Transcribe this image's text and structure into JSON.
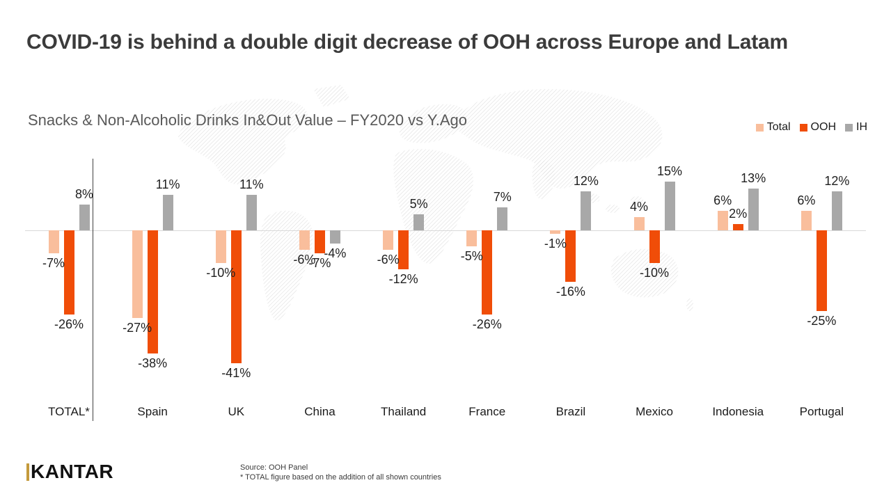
{
  "slide": {
    "title": "COVID-19 is behind a double digit decrease of OOH across Europe and Latam",
    "subtitle": "Snacks & Non-Alcoholic Drinks In&Out Value – FY2020 vs Y.Ago"
  },
  "legend": [
    {
      "label": "Total",
      "color": "#f9be9c"
    },
    {
      "label": "OOH",
      "color": "#f04d08"
    },
    {
      "label": "IH",
      "color": "#a8a8a8"
    }
  ],
  "chart_data": {
    "type": "bar",
    "title": "Snacks & Non-Alcoholic Drinks In&Out Value – FY2020 vs Y.Ago",
    "categories": [
      "TOTAL*",
      "Spain",
      "UK",
      "China",
      "Thailand",
      "France",
      "Brazil",
      "Mexico",
      "Indonesia",
      "Portugal"
    ],
    "series": [
      {
        "name": "Total",
        "color": "#f9be9c",
        "values": [
          -7,
          -27,
          -10,
          -6,
          -6,
          -5,
          -1,
          4,
          6,
          6
        ]
      },
      {
        "name": "OOH",
        "color": "#f04d08",
        "values": [
          -26,
          -38,
          -41,
          -7,
          -12,
          -26,
          -16,
          -10,
          2,
          -25
        ]
      },
      {
        "name": "IH",
        "color": "#a8a8a8",
        "values": [
          8,
          11,
          11,
          -4,
          5,
          7,
          12,
          15,
          13,
          12
        ]
      }
    ],
    "value_suffix": "%",
    "ylim": [
      -45,
      18
    ],
    "grid": false,
    "legend_position": "top-right",
    "xlabel": "",
    "ylabel": ""
  },
  "footer": {
    "logo": "KANTAR",
    "source_line1": "Source: OOH Panel",
    "source_line2": "* TOTAL  figure based on the addition of all shown countries"
  },
  "colors": {
    "title_text": "#3b3b3b",
    "subtitle_text": "#595959",
    "total_bar": "#f9be9c",
    "ooh_bar": "#f04d08",
    "ih_bar": "#a8a8a8",
    "axis_line": "#d9d9d9",
    "separator_line": "#3f3f3f",
    "logo_accent": "#c49a3c"
  }
}
